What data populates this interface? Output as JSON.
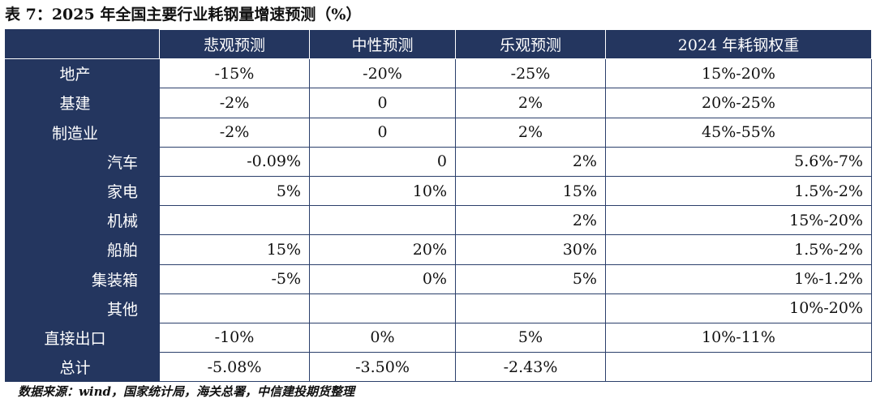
{
  "title": "表 7：2025 年全国主要行业耗钢量增速预测（%）",
  "headers": [
    "",
    "悲观预测",
    "中性预测",
    "乐观预测",
    "2024 年耗钢权重"
  ],
  "rows": [
    {
      "label": "地产",
      "align": "c",
      "cells": [
        "-15%",
        "-20%",
        "-25%",
        "15%-20%"
      ]
    },
    {
      "label": "基建",
      "align": "c",
      "cells": [
        "-2%",
        "0",
        "2%",
        "20%-25%"
      ]
    },
    {
      "label": "制造业",
      "align": "c",
      "cells": [
        "-2%",
        "0",
        "2%",
        "45%-55%"
      ]
    },
    {
      "label": "汽车",
      "align": "r",
      "cells": [
        "-0.09%",
        "0",
        "2%",
        "5.6%-7%"
      ]
    },
    {
      "label": "家电",
      "align": "r",
      "cells": [
        "5%",
        "10%",
        "15%",
        "1.5%-2%"
      ]
    },
    {
      "label": "机械",
      "align": "r",
      "cells": [
        "",
        "",
        "2%",
        "15%-20%"
      ]
    },
    {
      "label": "船舶",
      "align": "r",
      "cells": [
        "15%",
        "20%",
        "30%",
        "1.5%-2%"
      ]
    },
    {
      "label": "集装箱",
      "align": "r",
      "cells": [
        "-5%",
        "0%",
        "5%",
        "1%-1.2%"
      ]
    },
    {
      "label": "其他",
      "align": "r",
      "cells": [
        "",
        "",
        "",
        "10%-20%"
      ]
    },
    {
      "label": "直接出口",
      "align": "c",
      "cells": [
        "-10%",
        "0%",
        "5%",
        "10%-11%"
      ]
    },
    {
      "label": "总计",
      "align": "c",
      "cells": [
        "-5.08%",
        "-3.50%",
        "-2.43%",
        ""
      ]
    }
  ],
  "source": "数据来源：wind，国家统计局，海关总署，中信建投期货整理"
}
